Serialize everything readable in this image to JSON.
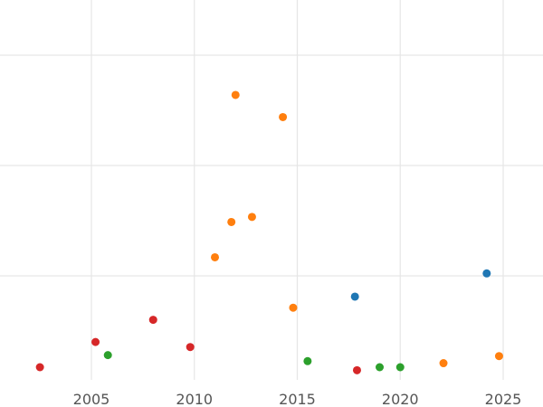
{
  "chart_data": {
    "type": "scatter",
    "title": "",
    "xlabel": "",
    "ylabel": "",
    "xlim": [
      2001.5,
      2026.5
    ],
    "ylim": [
      0,
      16
    ],
    "x_ticks": [
      2005,
      2010,
      2015,
      2020,
      2025
    ],
    "x_tick_labels": [
      "2005",
      "2010",
      "2015",
      "2020",
      "2025"
    ],
    "y_gridlines": [
      4.5,
      9.5,
      14.5
    ],
    "grid": true,
    "legend": "none",
    "series": [
      {
        "color": "#1f77b4",
        "points": [
          {
            "x": 2017.8,
            "y": 3.5
          },
          {
            "x": 2024.2,
            "y": 4.65
          }
        ]
      },
      {
        "color": "#ff7f0e",
        "points": [
          {
            "x": 2012.0,
            "y": 13.5
          },
          {
            "x": 2014.3,
            "y": 12.4
          },
          {
            "x": 2012.8,
            "y": 7.45
          },
          {
            "x": 2011.8,
            "y": 7.2
          },
          {
            "x": 2011.0,
            "y": 5.45
          },
          {
            "x": 2014.8,
            "y": 2.95
          },
          {
            "x": 2022.1,
            "y": 0.2
          },
          {
            "x": 2024.8,
            "y": 0.55
          }
        ]
      },
      {
        "color": "#2ca02c",
        "points": [
          {
            "x": 2005.8,
            "y": 0.6
          },
          {
            "x": 2015.5,
            "y": 0.3
          },
          {
            "x": 2019.0,
            "y": 0.0
          },
          {
            "x": 2020.0,
            "y": 0.0
          }
        ]
      },
      {
        "color": "#d62728",
        "points": [
          {
            "x": 2002.5,
            "y": 0.0
          },
          {
            "x": 2005.2,
            "y": 1.25
          },
          {
            "x": 2008.0,
            "y": 2.35
          },
          {
            "x": 2009.8,
            "y": 1.0
          },
          {
            "x": 2017.9,
            "y": -0.15
          }
        ]
      }
    ]
  }
}
